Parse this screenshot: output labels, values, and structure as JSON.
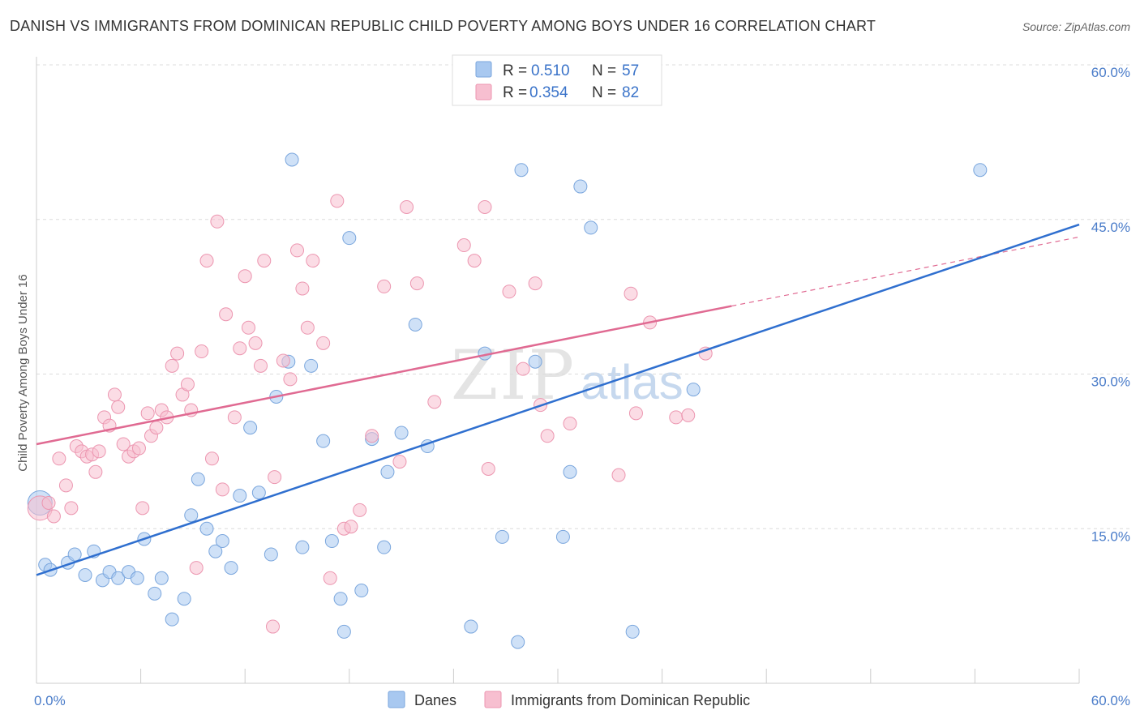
{
  "colors": {
    "danes_fill": "#a8c8f0",
    "danes_stroke": "#7aa6dd",
    "danes_line": "#2f6fcf",
    "immig_fill": "#f7bfd0",
    "immig_stroke": "#ec96b0",
    "immig_line": "#e06a92",
    "grid": "#dcdcdc",
    "tick_text": "#4a7cc9"
  },
  "chart_data": {
    "type": "scatter",
    "title": "DANISH VS IMMIGRANTS FROM DOMINICAN REPUBLIC CHILD POVERTY AMONG BOYS UNDER 16 CORRELATION CHART",
    "source": "Source: ZipAtlas.com",
    "xlabel": "",
    "ylabel": "Child Poverty Among Boys Under 16",
    "xlim": [
      0,
      60
    ],
    "ylim": [
      0,
      60
    ],
    "x_ticks": [
      "0.0%",
      "60.0%"
    ],
    "y_ticks": [
      {
        "value": 15,
        "label": "15.0%"
      },
      {
        "value": 30,
        "label": "30.0%"
      },
      {
        "value": 45,
        "label": "45.0%"
      },
      {
        "value": 60,
        "label": "60.0%"
      }
    ],
    "legend": {
      "entries": [
        {
          "r_label": "R =",
          "r_value": "0.510",
          "n_label": "N =",
          "n_value": "57"
        },
        {
          "r_label": "R =",
          "r_value": "0.354",
          "n_label": "N =",
          "n_value": "82"
        }
      ]
    },
    "series": [
      {
        "name": "Danes",
        "trend": {
          "x0": 0,
          "y0": 10.5,
          "x1": 60,
          "y1": 44.5,
          "solid_until": 60
        },
        "points": [
          [
            0.2,
            17.5
          ],
          [
            0.5,
            11.5
          ],
          [
            0.8,
            11.0
          ],
          [
            1.8,
            11.7
          ],
          [
            2.2,
            12.5
          ],
          [
            2.8,
            10.5
          ],
          [
            3.3,
            12.8
          ],
          [
            3.8,
            10.0
          ],
          [
            4.2,
            10.8
          ],
          [
            4.7,
            10.2
          ],
          [
            5.3,
            10.8
          ],
          [
            5.8,
            10.2
          ],
          [
            6.2,
            14.0
          ],
          [
            6.8,
            8.7
          ],
          [
            7.2,
            10.2
          ],
          [
            7.8,
            6.2
          ],
          [
            8.5,
            8.2
          ],
          [
            8.9,
            16.3
          ],
          [
            9.3,
            19.8
          ],
          [
            9.8,
            15.0
          ],
          [
            10.3,
            12.8
          ],
          [
            10.7,
            13.8
          ],
          [
            11.2,
            11.2
          ],
          [
            11.7,
            18.2
          ],
          [
            12.3,
            24.8
          ],
          [
            12.8,
            18.5
          ],
          [
            13.5,
            12.5
          ],
          [
            13.8,
            27.8
          ],
          [
            14.5,
            31.2
          ],
          [
            14.7,
            50.8
          ],
          [
            15.3,
            13.2
          ],
          [
            15.8,
            30.8
          ],
          [
            16.5,
            23.5
          ],
          [
            17.0,
            13.8
          ],
          [
            17.5,
            8.2
          ],
          [
            17.7,
            5.0
          ],
          [
            18.0,
            43.2
          ],
          [
            18.7,
            9.0
          ],
          [
            19.3,
            23.7
          ],
          [
            20.0,
            13.2
          ],
          [
            20.2,
            20.5
          ],
          [
            21.0,
            24.3
          ],
          [
            21.8,
            34.8
          ],
          [
            22.5,
            23.0
          ],
          [
            25.0,
            5.5
          ],
          [
            25.8,
            32.0
          ],
          [
            26.8,
            14.2
          ],
          [
            27.7,
            4.0
          ],
          [
            27.9,
            49.8
          ],
          [
            28.7,
            31.2
          ],
          [
            30.3,
            14.2
          ],
          [
            30.7,
            20.5
          ],
          [
            31.3,
            48.2
          ],
          [
            31.9,
            44.2
          ],
          [
            34.3,
            5.0
          ],
          [
            37.8,
            28.5
          ],
          [
            54.3,
            49.8
          ]
        ]
      },
      {
        "name": "Immigrants from Dominican Republic",
        "trend": {
          "x0": 0,
          "y0": 23.2,
          "x1": 60,
          "y1": 43.3,
          "solid_until": 40
        },
        "points": [
          [
            0.2,
            17.0
          ],
          [
            0.7,
            17.5
          ],
          [
            1.0,
            16.2
          ],
          [
            1.3,
            21.8
          ],
          [
            1.7,
            19.2
          ],
          [
            2.0,
            17.0
          ],
          [
            2.3,
            23.0
          ],
          [
            2.6,
            22.5
          ],
          [
            2.9,
            22.0
          ],
          [
            3.2,
            22.2
          ],
          [
            3.4,
            20.5
          ],
          [
            3.6,
            22.5
          ],
          [
            3.9,
            25.8
          ],
          [
            4.2,
            25.0
          ],
          [
            4.5,
            28.0
          ],
          [
            4.7,
            26.8
          ],
          [
            5.0,
            23.2
          ],
          [
            5.3,
            22.0
          ],
          [
            5.6,
            22.5
          ],
          [
            5.9,
            22.8
          ],
          [
            6.1,
            17.0
          ],
          [
            6.4,
            26.2
          ],
          [
            6.6,
            24.0
          ],
          [
            6.9,
            24.8
          ],
          [
            7.2,
            26.5
          ],
          [
            7.5,
            25.8
          ],
          [
            7.8,
            30.8
          ],
          [
            8.1,
            32.0
          ],
          [
            8.4,
            28.0
          ],
          [
            8.7,
            29.0
          ],
          [
            8.9,
            26.5
          ],
          [
            9.2,
            11.2
          ],
          [
            9.5,
            32.2
          ],
          [
            9.8,
            41.0
          ],
          [
            10.1,
            21.8
          ],
          [
            10.4,
            44.8
          ],
          [
            10.7,
            18.8
          ],
          [
            10.9,
            35.8
          ],
          [
            11.4,
            25.8
          ],
          [
            11.7,
            32.5
          ],
          [
            12.0,
            39.5
          ],
          [
            12.2,
            34.5
          ],
          [
            12.6,
            33.0
          ],
          [
            12.9,
            30.8
          ],
          [
            13.1,
            41.0
          ],
          [
            13.6,
            5.5
          ],
          [
            13.7,
            20.0
          ],
          [
            14.2,
            31.3
          ],
          [
            14.6,
            29.5
          ],
          [
            15.0,
            42.0
          ],
          [
            15.3,
            38.3
          ],
          [
            15.6,
            34.5
          ],
          [
            15.9,
            41.0
          ],
          [
            16.5,
            33.0
          ],
          [
            16.9,
            10.2
          ],
          [
            17.3,
            46.8
          ],
          [
            17.7,
            15.0
          ],
          [
            18.1,
            15.2
          ],
          [
            18.6,
            16.8
          ],
          [
            19.3,
            24.0
          ],
          [
            20.0,
            38.5
          ],
          [
            20.9,
            21.5
          ],
          [
            21.3,
            46.2
          ],
          [
            21.9,
            38.8
          ],
          [
            22.9,
            27.3
          ],
          [
            24.6,
            42.5
          ],
          [
            25.2,
            41.0
          ],
          [
            25.8,
            46.2
          ],
          [
            26.0,
            20.8
          ],
          [
            27.2,
            38.0
          ],
          [
            28.0,
            30.5
          ],
          [
            28.7,
            38.8
          ],
          [
            29.0,
            27.0
          ],
          [
            29.4,
            24.0
          ],
          [
            30.7,
            25.2
          ],
          [
            33.5,
            20.2
          ],
          [
            34.2,
            37.8
          ],
          [
            34.5,
            26.2
          ],
          [
            35.3,
            35.0
          ],
          [
            36.8,
            25.8
          ],
          [
            37.5,
            26.0
          ],
          [
            38.5,
            32.0
          ]
        ]
      }
    ],
    "bottom_legend": [
      "Danes",
      "Immigrants from Dominican Republic"
    ],
    "watermark": {
      "left": "ZIP",
      "right": "atlas"
    }
  }
}
